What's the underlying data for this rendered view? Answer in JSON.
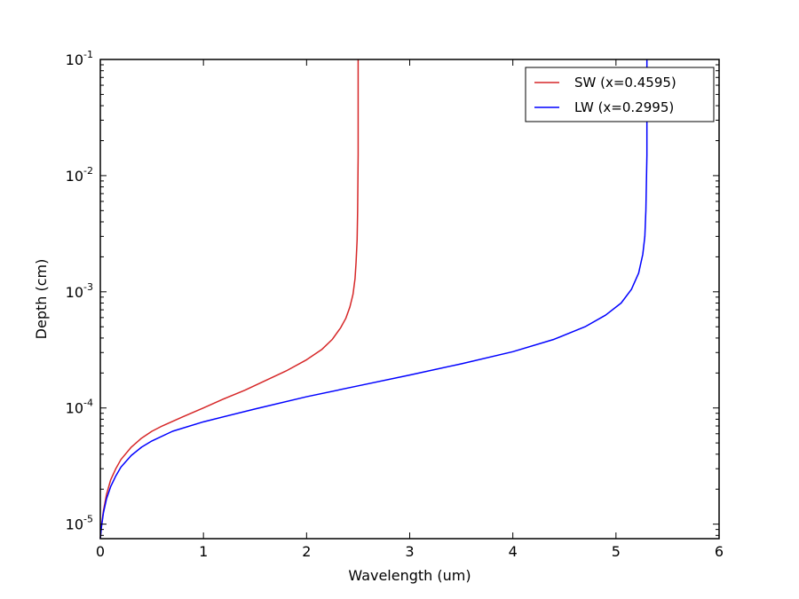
{
  "chart_data": {
    "type": "line",
    "title": "",
    "xlabel": "Wavelength (um)",
    "ylabel": "Depth (cm)",
    "xlim": [
      0,
      6
    ],
    "ylim": [
      7.5e-06,
      0.1
    ],
    "yscale": "log",
    "grid": false,
    "legend_position": "top-right",
    "x_ticks": [
      "0",
      "1",
      "2",
      "3",
      "4",
      "5",
      "6"
    ],
    "y_ticks": [
      {
        "base": "10",
        "exp": "-5",
        "value": 1e-05
      },
      {
        "base": "10",
        "exp": "-4",
        "value": 0.0001
      },
      {
        "base": "10",
        "exp": "-3",
        "value": 0.001
      },
      {
        "base": "10",
        "exp": "-2",
        "value": 0.01
      },
      {
        "base": "10",
        "exp": "-1",
        "value": 0.1
      }
    ],
    "series": [
      {
        "name": "SW (x=0.4595)",
        "color": "#d62728",
        "x": [
          0.0,
          0.01,
          0.03,
          0.06,
          0.1,
          0.15,
          0.2,
          0.3,
          0.4,
          0.5,
          0.6,
          0.8,
          1.0,
          1.2,
          1.4,
          1.6,
          1.8,
          2.0,
          2.15,
          2.25,
          2.33,
          2.38,
          2.42,
          2.45,
          2.47,
          2.48,
          2.49,
          2.495,
          2.5,
          2.5
        ],
        "y": [
          7.5e-06,
          9.5e-06,
          1.3e-05,
          1.8e-05,
          2.4e-05,
          3e-05,
          3.6e-05,
          4.6e-05,
          5.5e-05,
          6.3e-05,
          7e-05,
          8.4e-05,
          0.0001,
          0.00012,
          0.000142,
          0.000172,
          0.000208,
          0.00026,
          0.00032,
          0.00039,
          0.00049,
          0.00059,
          0.00074,
          0.00095,
          0.0013,
          0.0018,
          0.0028,
          0.005,
          0.015,
          0.1
        ]
      },
      {
        "name": "LW (x=0.2995)",
        "color": "#0000ff",
        "x": [
          0.0,
          0.01,
          0.03,
          0.06,
          0.1,
          0.15,
          0.2,
          0.3,
          0.4,
          0.5,
          0.7,
          1.0,
          1.5,
          2.0,
          2.5,
          3.0,
          3.5,
          4.0,
          4.4,
          4.7,
          4.9,
          5.05,
          5.15,
          5.22,
          5.26,
          5.28,
          5.29,
          5.3,
          5.3
        ],
        "y": [
          7.5e-06,
          9.3e-06,
          1.25e-05,
          1.65e-05,
          2.1e-05,
          2.6e-05,
          3.1e-05,
          3.9e-05,
          4.6e-05,
          5.2e-05,
          6.3e-05,
          7.6e-05,
          9.8e-05,
          0.000125,
          0.000155,
          0.000192,
          0.00024,
          0.000305,
          0.00039,
          0.0005,
          0.00063,
          0.0008,
          0.00105,
          0.00145,
          0.0021,
          0.003,
          0.005,
          0.015,
          0.1
        ]
      }
    ]
  }
}
